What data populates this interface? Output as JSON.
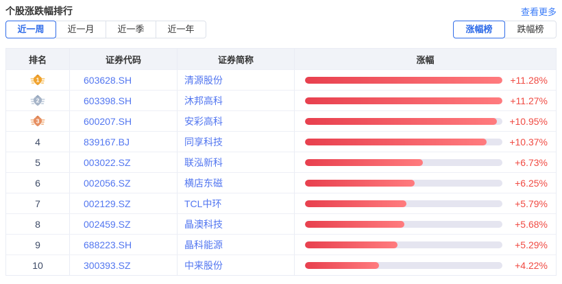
{
  "header": {
    "title": "个股涨跌幅排行",
    "more_link": "查看更多"
  },
  "period_tabs": [
    {
      "label": "近一周",
      "active": true
    },
    {
      "label": "近一月",
      "active": false
    },
    {
      "label": "近一季",
      "active": false
    },
    {
      "label": "近一年",
      "active": false
    }
  ],
  "board_tabs": [
    {
      "label": "涨幅榜",
      "active": true
    },
    {
      "label": "跌幅榜",
      "active": false
    }
  ],
  "colors": {
    "accent_blue": "#2e6be8",
    "link_blue": "#5276f0",
    "rise_red": "#f04a42",
    "bar_gradient_start": "#e8404e",
    "bar_gradient_end": "#ff7b7e",
    "bar_track": "#e5e5f0",
    "header_bg": "#f1f3f8",
    "border": "#e9ecf4"
  },
  "medal_colors": {
    "1": {
      "main": "#F0A32F",
      "light": "#F8CC7E",
      "dark": "#E18E1C"
    },
    "2": {
      "main": "#A6B4C8",
      "light": "#CBD5E1",
      "dark": "#8FA2BA"
    },
    "3": {
      "main": "#E69063",
      "light": "#F3BE95",
      "dark": "#D97B47"
    }
  },
  "table": {
    "columns": [
      "排名",
      "证券代码",
      "证券简称",
      "涨幅"
    ],
    "max_change_pct": 11.28,
    "rows": [
      {
        "rank": 1,
        "code": "603628.SH",
        "name": "清源股份",
        "change": "+11.28%",
        "pct": 11.28
      },
      {
        "rank": 2,
        "code": "603398.SH",
        "name": "沐邦高科",
        "change": "+11.27%",
        "pct": 11.27
      },
      {
        "rank": 3,
        "code": "600207.SH",
        "name": "安彩高科",
        "change": "+10.95%",
        "pct": 10.95
      },
      {
        "rank": 4,
        "code": "839167.BJ",
        "name": "同享科技",
        "change": "+10.37%",
        "pct": 10.37
      },
      {
        "rank": 5,
        "code": "003022.SZ",
        "name": "联泓新科",
        "change": "+6.73%",
        "pct": 6.73
      },
      {
        "rank": 6,
        "code": "002056.SZ",
        "name": "横店东磁",
        "change": "+6.25%",
        "pct": 6.25
      },
      {
        "rank": 7,
        "code": "002129.SZ",
        "name": "TCL中环",
        "change": "+5.79%",
        "pct": 5.79
      },
      {
        "rank": 8,
        "code": "002459.SZ",
        "name": "晶澳科技",
        "change": "+5.68%",
        "pct": 5.68
      },
      {
        "rank": 9,
        "code": "688223.SH",
        "name": "晶科能源",
        "change": "+5.29%",
        "pct": 5.29
      },
      {
        "rank": 10,
        "code": "300393.SZ",
        "name": "中来股份",
        "change": "+4.22%",
        "pct": 4.22
      }
    ]
  }
}
